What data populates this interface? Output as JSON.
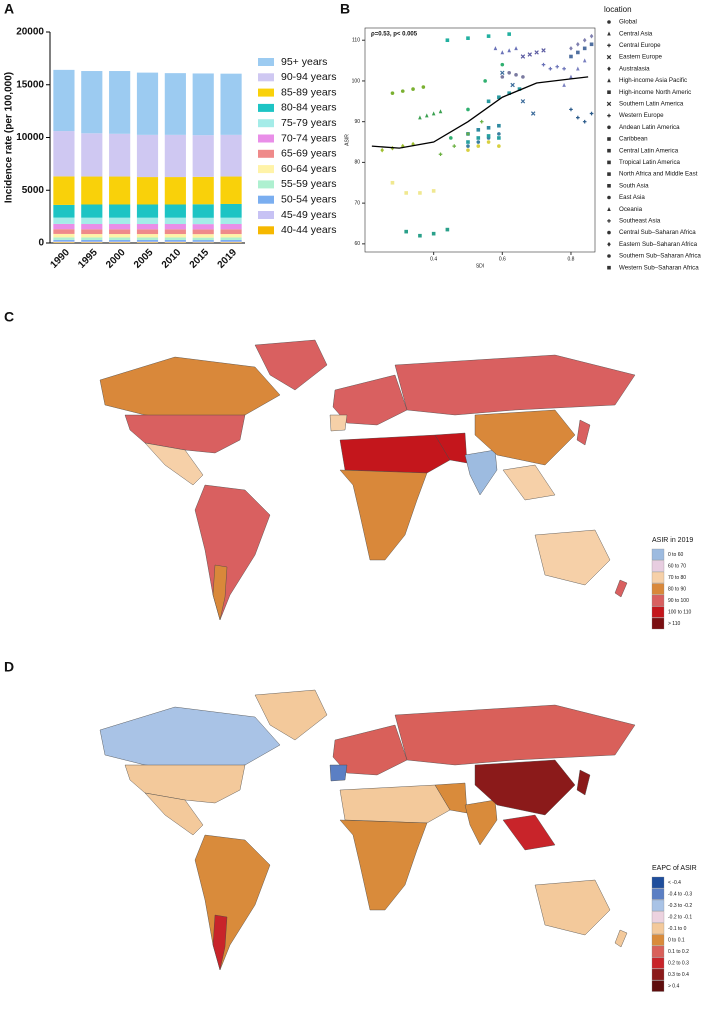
{
  "chart_data": [
    {
      "type": "stacked-bar",
      "panel": "A",
      "ylabel": "Incidence rate (per 100,000)",
      "categories": [
        "1990",
        "1995",
        "2000",
        "2005",
        "2010",
        "2015",
        "2019"
      ],
      "ylim": [
        0,
        20000
      ],
      "yticks": [
        0,
        5000,
        10000,
        15000,
        20000
      ],
      "series": [
        {
          "name": "95+ years",
          "color": "#9ccbf1",
          "values": [
            5800,
            5900,
            5950,
            5900,
            5850,
            5850,
            5800
          ]
        },
        {
          "name": "90-94 years",
          "color": "#cfc8f2",
          "values": [
            4300,
            4100,
            4050,
            4000,
            4000,
            3950,
            3950
          ]
        },
        {
          "name": "85-89 years",
          "color": "#f9d10a",
          "values": [
            2700,
            2650,
            2650,
            2600,
            2600,
            2600,
            2600
          ]
        },
        {
          "name": "80-84 years",
          "color": "#1dc4c4",
          "values": [
            1200,
            1250,
            1250,
            1250,
            1250,
            1280,
            1300
          ]
        },
        {
          "name": "75-79 years",
          "color": "#a4ece8",
          "values": [
            600,
            600,
            600,
            600,
            600,
            600,
            600
          ]
        },
        {
          "name": "70-74 years",
          "color": "#e98ee8",
          "values": [
            500,
            500,
            500,
            500,
            500,
            500,
            500
          ]
        },
        {
          "name": "65-69 years",
          "color": "#ef8a8a",
          "values": [
            450,
            450,
            450,
            450,
            450,
            450,
            450
          ]
        },
        {
          "name": "60-64 years",
          "color": "#fff3a8",
          "values": [
            330,
            330,
            330,
            330,
            330,
            330,
            330
          ]
        },
        {
          "name": "55-59 years",
          "color": "#aef0d0",
          "values": [
            230,
            230,
            230,
            230,
            230,
            230,
            230
          ]
        },
        {
          "name": "50-54 years",
          "color": "#7aaef0",
          "values": [
            150,
            150,
            150,
            150,
            150,
            150,
            150
          ]
        },
        {
          "name": "45-49 years",
          "color": "#c7c2f4",
          "values": [
            90,
            90,
            90,
            90,
            90,
            90,
            90
          ]
        },
        {
          "name": "40-44 years",
          "color": "#f6b800",
          "values": [
            60,
            50,
            50,
            50,
            50,
            40,
            50
          ]
        }
      ]
    },
    {
      "type": "scatter",
      "panel": "B",
      "annotation": "ρ=0.53, p< 0.005",
      "xlabel": "SDI",
      "ylabel": "ASIR",
      "legend_title": "location",
      "xlim": [
        0.2,
        0.87
      ],
      "ylim": [
        58,
        113
      ],
      "xticks": [
        0.4,
        0.6,
        0.8
      ],
      "yticks": [
        60,
        70,
        80,
        90,
        100,
        110
      ],
      "trend": {
        "color": "#000000",
        "x": [
          0.22,
          0.3,
          0.4,
          0.5,
          0.6,
          0.7,
          0.8,
          0.85
        ],
        "y": [
          84,
          83.5,
          85,
          90,
          96,
          99.5,
          100.5,
          101
        ]
      },
      "series": [
        {
          "name": "Global",
          "color": "#7a7aa0",
          "marker": "circle",
          "x": [
            0.6,
            0.62,
            0.64,
            0.66
          ],
          "y": [
            101,
            102,
            101.5,
            101
          ]
        },
        {
          "name": "Central Asia",
          "color": "#6a72b8",
          "marker": "triangle",
          "x": [
            0.58,
            0.6,
            0.62,
            0.64
          ],
          "y": [
            108,
            107,
            107.5,
            108
          ]
        },
        {
          "name": "Central Europe",
          "color": "#6a72b8",
          "marker": "plus",
          "x": [
            0.72,
            0.74,
            0.76,
            0.78
          ],
          "y": [
            104,
            103,
            103.5,
            103
          ]
        },
        {
          "name": "Eastern Europe",
          "color": "#5a5aa0",
          "marker": "cross",
          "x": [
            0.66,
            0.68,
            0.7,
            0.72
          ],
          "y": [
            106,
            106.5,
            107,
            107.5
          ]
        },
        {
          "name": "Australasia",
          "color": "#8080b0",
          "marker": "diamond",
          "x": [
            0.8,
            0.82,
            0.84,
            0.86
          ],
          "y": [
            108,
            109,
            110,
            111
          ]
        },
        {
          "name": "High-income Asia Pacific",
          "color": "#7a80c0",
          "marker": "triangle",
          "x": [
            0.78,
            0.8,
            0.82,
            0.84
          ],
          "y": [
            99,
            101,
            103,
            105
          ]
        },
        {
          "name": "High-income North Americ",
          "color": "#5070a0",
          "marker": "square",
          "x": [
            0.8,
            0.82,
            0.84,
            0.86
          ],
          "y": [
            106,
            107,
            108,
            109
          ]
        },
        {
          "name": "Southern Latin America",
          "color": "#3a6a9a",
          "marker": "cross",
          "x": [
            0.6,
            0.63,
            0.66,
            0.69
          ],
          "y": [
            102,
            99,
            95,
            92
          ]
        },
        {
          "name": "Western Europe",
          "color": "#2a5a8a",
          "marker": "plus",
          "x": [
            0.8,
            0.82,
            0.84,
            0.86
          ],
          "y": [
            93,
            91,
            90,
            92
          ]
        },
        {
          "name": "Andean Latin America",
          "color": "#3b7fa0",
          "marker": "circle",
          "x": [
            0.5,
            0.53,
            0.56,
            0.59
          ],
          "y": [
            84,
            85,
            86,
            87
          ]
        },
        {
          "name": "Caribbean",
          "color": "#2f8aa0",
          "marker": "square",
          "x": [
            0.5,
            0.53,
            0.56,
            0.59
          ],
          "y": [
            87,
            88,
            88.5,
            89
          ]
        },
        {
          "name": "Central Latin America",
          "color": "#2a9aa0",
          "marker": "square",
          "x": [
            0.56,
            0.59,
            0.62,
            0.65
          ],
          "y": [
            95,
            96,
            97,
            98
          ]
        },
        {
          "name": "Tropical Latin America",
          "color": "#27a0a0",
          "marker": "square",
          "x": [
            0.5,
            0.53,
            0.56,
            0.59
          ],
          "y": [
            85,
            86,
            86.5,
            86
          ]
        },
        {
          "name": "North Africa and Middle East",
          "color": "#22b0a0",
          "marker": "square",
          "x": [
            0.44,
            0.5,
            0.56,
            0.62
          ],
          "y": [
            110,
            110.5,
            111,
            111.5
          ]
        },
        {
          "name": "South Asia",
          "color": "#2aa08a",
          "marker": "square",
          "x": [
            0.32,
            0.36,
            0.4,
            0.44
          ],
          "y": [
            63,
            62,
            62.5,
            63.5
          ]
        },
        {
          "name": "East Asia",
          "color": "#30b070",
          "marker": "circle",
          "x": [
            0.45,
            0.5,
            0.55,
            0.6
          ],
          "y": [
            86,
            93,
            100,
            104
          ]
        },
        {
          "name": "Oceania",
          "color": "#3aa050",
          "marker": "triangle",
          "x": [
            0.36,
            0.38,
            0.4,
            0.42
          ],
          "y": [
            91,
            91.5,
            92,
            92.5
          ]
        },
        {
          "name": "Southeast Asia",
          "color": "#6ab040",
          "marker": "plus",
          "x": [
            0.42,
            0.46,
            0.5,
            0.54
          ],
          "y": [
            82,
            84,
            87,
            90
          ]
        },
        {
          "name": "Central Sub–Saharan Africa",
          "color": "#7ab030",
          "marker": "circle",
          "x": [
            0.28,
            0.31,
            0.34,
            0.37
          ],
          "y": [
            97,
            97.5,
            98,
            98.5
          ]
        },
        {
          "name": "Eastern Sub–Saharan Africa",
          "color": "#a0c030",
          "marker": "diamond",
          "x": [
            0.25,
            0.28,
            0.31,
            0.34
          ],
          "y": [
            83,
            83.5,
            84,
            84.5
          ]
        },
        {
          "name": "Southern Sub–Saharan Africa",
          "color": "#d8d040",
          "marker": "circle",
          "x": [
            0.5,
            0.53,
            0.56,
            0.59
          ],
          "y": [
            83,
            84,
            85,
            84
          ]
        },
        {
          "name": "Western Sub–Saharan Africa",
          "color": "#f0e890",
          "marker": "square",
          "x": [
            0.28,
            0.32,
            0.36,
            0.4
          ],
          "y": [
            75,
            72.5,
            72.5,
            73
          ]
        }
      ]
    }
  ],
  "maps": [
    {
      "panel": "C",
      "legend_title": "ASIR in 2019",
      "legend": [
        {
          "label": "0 to 60",
          "color": "#9dbbe0"
        },
        {
          "label": "60 to 70",
          "color": "#e7cde0"
        },
        {
          "label": "70 to 80",
          "color": "#f6d0a8"
        },
        {
          "label": "80 to 90",
          "color": "#d9883a"
        },
        {
          "label": "90 to 100",
          "color": "#d96060"
        },
        {
          "label": "100 to 110",
          "color": "#c4161c"
        },
        {
          "label": "> 110",
          "color": "#7a0f12"
        }
      ]
    },
    {
      "panel": "D",
      "legend_title": "EAPC of ASIR",
      "legend": [
        {
          "label": "< -0.4",
          "color": "#1f4e9c"
        },
        {
          "label": "-0.4 to -0.3",
          "color": "#5b7fc4"
        },
        {
          "label": "-0.3 to -0.2",
          "color": "#a9c3e6"
        },
        {
          "label": "-0.2 to -0.1",
          "color": "#ecd2df"
        },
        {
          "label": "-0.1 to 0",
          "color": "#f3c99b"
        },
        {
          "label": "0 to 0.1",
          "color": "#d98b3b"
        },
        {
          "label": "0.1 to 0.2",
          "color": "#d9605a"
        },
        {
          "label": "0.2 to 0.3",
          "color": "#c8242a"
        },
        {
          "label": "0.3 to 0.4",
          "color": "#8b1a1a"
        },
        {
          "label": "> 0.4",
          "color": "#5e0d0d"
        }
      ]
    }
  ]
}
